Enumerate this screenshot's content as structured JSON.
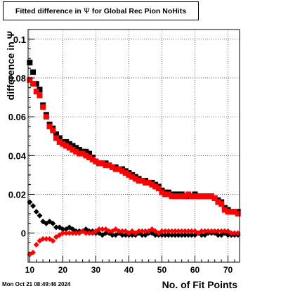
{
  "title": {
    "prefix": "Fitted difference in ",
    "symbol": "Ψ",
    "suffix": " for Global Rec Pion NoHits"
  },
  "timestamp": "Mon Oct 21 08:49:46 2024",
  "chart_data": {
    "type": "scatter",
    "xlabel": "No. of Fit Points",
    "ylabel": "difference in Ψ",
    "xlim": [
      9.5,
      73.5
    ],
    "ylim": [
      -0.015,
      0.105
    ],
    "xticks": [
      10,
      20,
      30,
      40,
      50,
      60,
      70
    ],
    "yticks": [
      0,
      0.02,
      0.04,
      0.06,
      0.08,
      0.1
    ],
    "ytick_labels": [
      "0",
      "0.02",
      "0.04",
      "0.06",
      "0.08",
      "0.1"
    ],
    "grid": true,
    "x": [
      10,
      11,
      12,
      13,
      14,
      15,
      16,
      17,
      18,
      19,
      20,
      21,
      22,
      23,
      24,
      25,
      26,
      27,
      28,
      29,
      30,
      31,
      32,
      33,
      34,
      35,
      36,
      37,
      38,
      39,
      40,
      41,
      42,
      43,
      44,
      45,
      46,
      47,
      48,
      49,
      50,
      51,
      52,
      53,
      54,
      55,
      56,
      57,
      58,
      59,
      60,
      61,
      62,
      63,
      64,
      65,
      66,
      67,
      68,
      69,
      70,
      71,
      72,
      73
    ],
    "series": [
      {
        "marker": "square",
        "color": "#000000",
        "values": [
          0.088,
          0.083,
          0.077,
          0.074,
          0.066,
          0.061,
          0.056,
          0.054,
          0.051,
          0.049,
          0.047,
          0.047,
          0.046,
          0.045,
          0.044,
          0.043,
          0.042,
          0.042,
          0.041,
          0.039,
          0.037,
          0.036,
          0.036,
          0.036,
          0.035,
          0.034,
          0.034,
          0.033,
          0.033,
          0.032,
          0.031,
          0.03,
          0.029,
          0.028,
          0.027,
          0.027,
          0.026,
          0.026,
          0.025,
          0.024,
          0.022,
          0.021,
          0.021,
          0.02,
          0.02,
          0.02,
          0.02,
          0.019,
          0.019,
          0.019,
          0.02,
          0.019,
          0.019,
          0.019,
          0.019,
          0.019,
          0.018,
          0.017,
          0.016,
          0.013,
          0.012,
          0.011,
          0.011,
          0.011
        ]
      },
      {
        "marker": "square",
        "color": "#ff0000",
        "values": [
          0.079,
          0.077,
          0.073,
          0.071,
          0.065,
          0.06,
          0.055,
          0.053,
          0.049,
          0.047,
          0.046,
          0.045,
          0.044,
          0.043,
          0.042,
          0.041,
          0.041,
          0.04,
          0.039,
          0.038,
          0.037,
          0.036,
          0.036,
          0.035,
          0.035,
          0.034,
          0.033,
          0.033,
          0.032,
          0.031,
          0.03,
          0.029,
          0.028,
          0.027,
          0.027,
          0.026,
          0.026,
          0.025,
          0.024,
          0.023,
          0.021,
          0.02,
          0.02,
          0.019,
          0.019,
          0.019,
          0.019,
          0.019,
          0.02,
          0.019,
          0.019,
          0.019,
          0.019,
          0.019,
          0.019,
          0.019,
          0.018,
          0.016,
          0.015,
          0.012,
          0.011,
          0.011,
          0.011,
          0.01
        ]
      },
      {
        "marker": "diamond",
        "color": "#000000",
        "values": [
          0.016,
          0.014,
          0.011,
          0.009,
          0.006,
          0.005,
          0.006,
          0.005,
          0.003,
          0.003,
          0.002,
          0.002,
          0.003,
          0.002,
          0.001,
          0.001,
          0.001,
          0.002,
          0.001,
          0.001,
          0.0,
          0.0,
          -0.001,
          0.0,
          0.0,
          -0.001,
          -0.001,
          0.0,
          -0.001,
          -0.001,
          -0.001,
          -0.001,
          -0.001,
          0.0,
          -0.001,
          -0.001,
          0.0,
          0.0,
          -0.001,
          -0.001,
          -0.001,
          -0.001,
          -0.001,
          -0.001,
          -0.001,
          -0.001,
          -0.001,
          -0.001,
          -0.001,
          -0.001,
          -0.001,
          0.0,
          -0.001,
          -0.001,
          0.0,
          0.0,
          0.0,
          -0.001,
          -0.001,
          0.0,
          -0.001,
          -0.001,
          -0.001,
          -0.001
        ]
      },
      {
        "marker": "diamond",
        "color": "#ff0000",
        "values": [
          -0.011,
          -0.01,
          -0.006,
          -0.004,
          -0.003,
          -0.003,
          -0.003,
          -0.004,
          -0.002,
          -0.001,
          0.0,
          0.0,
          0.0,
          0.0,
          0.0,
          0.0,
          0.001,
          0.0,
          0.0,
          0.0,
          0.001,
          0.002,
          0.002,
          0.002,
          0.001,
          0.001,
          0.002,
          0.001,
          0.001,
          0.001,
          0.0,
          0.001,
          0.0,
          0.001,
          0.001,
          0.001,
          0.001,
          0.002,
          0.001,
          0.0,
          0.001,
          0.001,
          0.001,
          0.001,
          0.001,
          0.001,
          0.001,
          0.001,
          0.001,
          0.001,
          0.001,
          0.0,
          0.001,
          0.001,
          0.001,
          0.001,
          0.001,
          0.001,
          0.001,
          0.001,
          0.001,
          0.0,
          0.0,
          0.0
        ]
      }
    ]
  }
}
